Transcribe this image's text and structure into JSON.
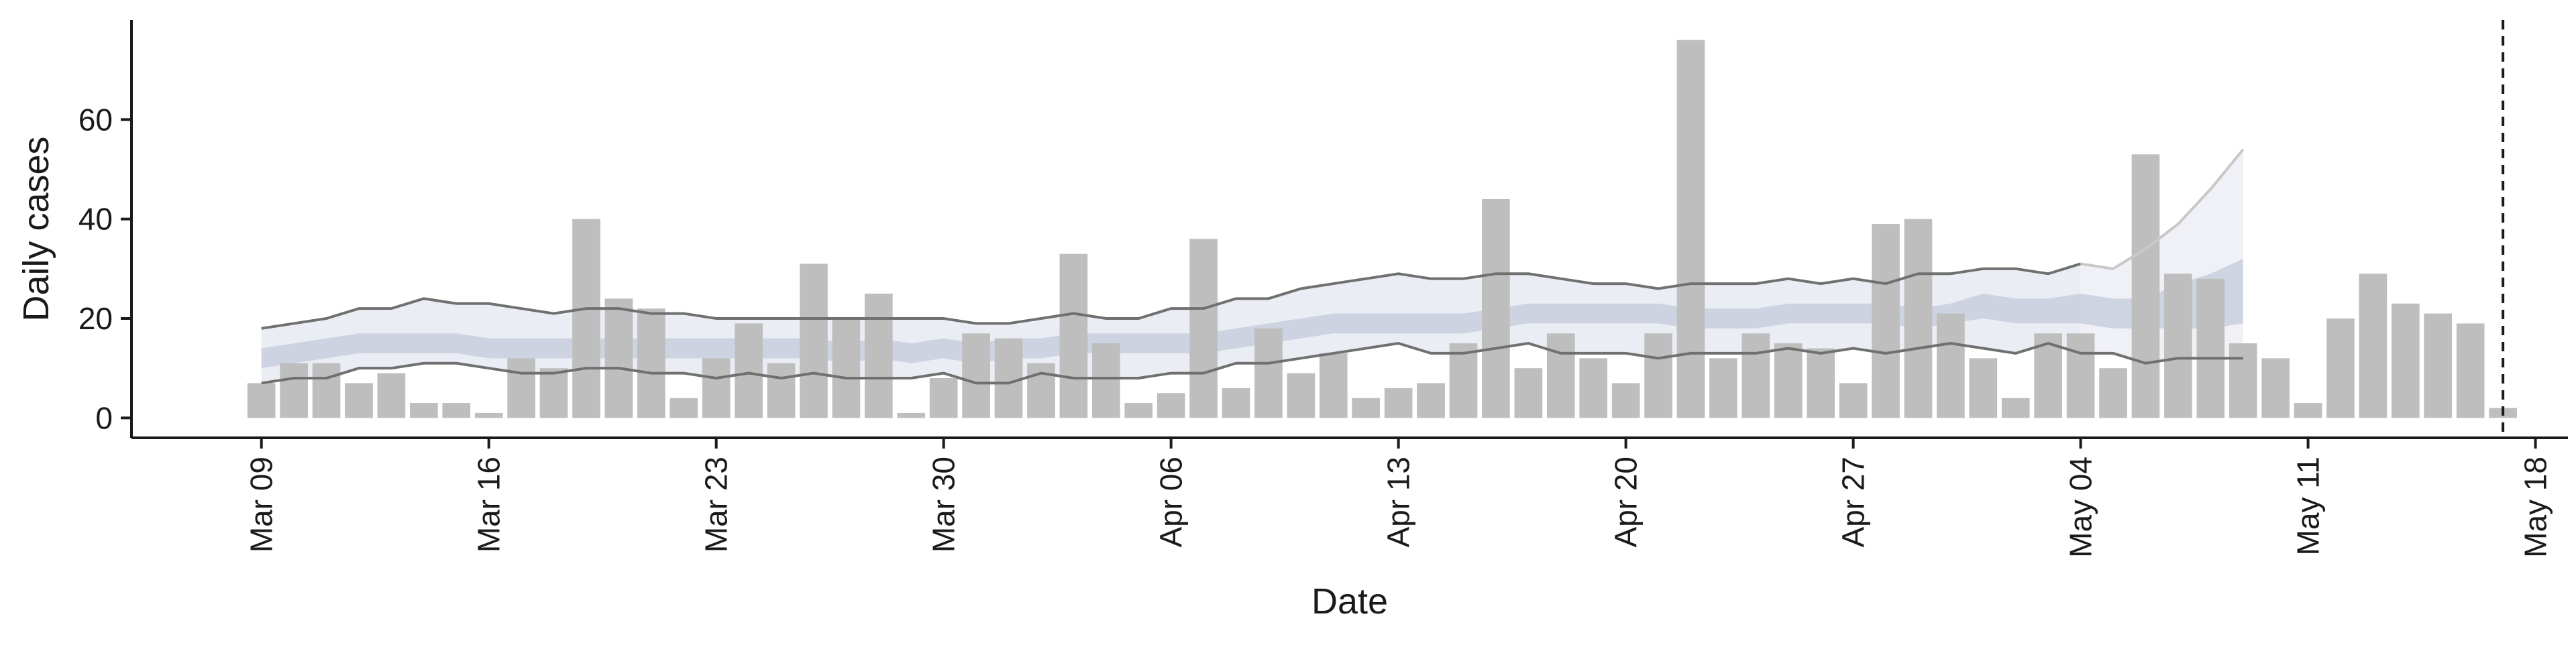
{
  "chart_data": {
    "type": "bar",
    "title": "",
    "xlabel": "Date",
    "ylabel": "Daily cases",
    "grid": false,
    "legend": "none",
    "x_start_date": "2020-03-09",
    "xlim": [
      "2020-03-05",
      "2020-05-19"
    ],
    "ylim": [
      -4,
      80
    ],
    "y_ticks": [
      0,
      20,
      40,
      60
    ],
    "y_tick_labels": [
      "0",
      "20",
      "40",
      "60"
    ],
    "x_ticks": [
      "2020-03-09",
      "2020-03-16",
      "2020-03-23",
      "2020-03-30",
      "2020-04-06",
      "2020-04-13",
      "2020-04-20",
      "2020-04-27",
      "2020-05-04",
      "2020-05-11",
      "2020-05-18"
    ],
    "x_tick_labels": [
      "Mar 09",
      "Mar 16",
      "Mar 23",
      "Mar 30",
      "Apr 06",
      "Apr 13",
      "Apr 20",
      "Apr 27",
      "May 04",
      "May 11",
      "May 18"
    ],
    "vline_date": "2020-05-17",
    "colors": {
      "bars": "#bebebe",
      "band_outer": "#e8eaf2",
      "band_inner": "#c3c9db",
      "lines": "#707070",
      "forecast_line": "#c8c8c8",
      "forecast_band": "#f0f1f6",
      "axis": "#1a1a1a"
    },
    "series": [
      {
        "type": "bar",
        "dates": [
          "2020-03-09",
          "2020-03-10",
          "2020-03-11",
          "2020-03-12",
          "2020-03-13",
          "2020-03-14",
          "2020-03-15",
          "2020-03-16",
          "2020-03-17",
          "2020-03-18",
          "2020-03-19",
          "2020-03-20",
          "2020-03-21",
          "2020-03-22",
          "2020-03-23",
          "2020-03-24",
          "2020-03-25",
          "2020-03-26",
          "2020-03-27",
          "2020-03-28",
          "2020-03-29",
          "2020-03-30",
          "2020-03-31",
          "2020-04-01",
          "2020-04-02",
          "2020-04-03",
          "2020-04-04",
          "2020-04-05",
          "2020-04-06",
          "2020-04-07",
          "2020-04-08",
          "2020-04-09",
          "2020-04-10",
          "2020-04-11",
          "2020-04-12",
          "2020-04-13",
          "2020-04-14",
          "2020-04-15",
          "2020-04-16",
          "2020-04-17",
          "2020-04-18",
          "2020-04-19",
          "2020-04-20",
          "2020-04-21",
          "2020-04-22",
          "2020-04-23",
          "2020-04-24",
          "2020-04-25",
          "2020-04-26",
          "2020-04-27",
          "2020-04-28",
          "2020-04-29",
          "2020-04-30",
          "2020-05-01",
          "2020-05-02",
          "2020-05-03",
          "2020-05-04",
          "2020-05-05",
          "2020-05-06",
          "2020-05-07",
          "2020-05-08",
          "2020-05-09",
          "2020-05-10",
          "2020-05-11",
          "2020-05-12",
          "2020-05-13",
          "2020-05-14",
          "2020-05-15",
          "2020-05-16",
          "2020-05-17"
        ],
        "values": [
          7,
          11,
          11,
          7,
          9,
          3,
          3,
          1,
          12,
          10,
          40,
          24,
          22,
          4,
          12,
          19,
          11,
          31,
          20,
          25,
          1,
          8,
          17,
          16,
          11,
          33,
          15,
          3,
          5,
          36,
          6,
          18,
          9,
          13,
          4,
          6,
          7,
          15,
          44,
          10,
          17,
          12,
          7,
          17,
          76,
          12,
          17,
          15,
          14,
          7,
          39,
          40,
          21,
          12,
          4,
          17,
          17,
          10,
          53,
          29,
          28,
          15,
          12,
          3,
          20,
          29,
          23,
          21,
          19,
          2
        ]
      },
      {
        "type": "area",
        "name": "",
        "dates_range": [
          "2020-03-09",
          "2020-05-10"
        ],
        "upper_outer": [
          18,
          19,
          20,
          22,
          22,
          24,
          23,
          23,
          22,
          21,
          22,
          22,
          21,
          21,
          20,
          20,
          20,
          20,
          20,
          20,
          20,
          20,
          19,
          19,
          20,
          21,
          20,
          20,
          22,
          22,
          24,
          24,
          26,
          27,
          28,
          29,
          28,
          28,
          29,
          29,
          28,
          27,
          27,
          26,
          27,
          27,
          27,
          28,
          27,
          28,
          27,
          29,
          29,
          30,
          30,
          29,
          31,
          30,
          34,
          39,
          46,
          54
        ],
        "lower_outer": [
          7,
          8,
          8,
          10,
          10,
          11,
          11,
          10,
          9,
          9,
          10,
          10,
          9,
          9,
          8,
          9,
          8,
          9,
          8,
          8,
          8,
          9,
          7,
          7,
          9,
          8,
          8,
          8,
          9,
          9,
          11,
          11,
          12,
          13,
          14,
          15,
          13,
          13,
          14,
          15,
          13,
          13,
          13,
          12,
          13,
          13,
          13,
          14,
          13,
          14,
          13,
          14,
          15,
          14,
          13,
          15,
          13,
          13,
          11,
          12,
          12,
          12
        ],
        "upper_inner": [
          14,
          15,
          16,
          17,
          17,
          17,
          17,
          16,
          16,
          16,
          16,
          16,
          16,
          16,
          16,
          16,
          16,
          16,
          15,
          16,
          15,
          16,
          15,
          16,
          16,
          17,
          17,
          17,
          17,
          17,
          18,
          19,
          20,
          21,
          21,
          21,
          21,
          21,
          22,
          23,
          23,
          23,
          23,
          23,
          22,
          22,
          22,
          23,
          23,
          23,
          23,
          22,
          23,
          25,
          24,
          24,
          25,
          24,
          24,
          27,
          29,
          32
        ],
        "lower_inner": [
          10,
          11,
          12,
          13,
          13,
          13,
          13,
          12,
          12,
          12,
          12,
          12,
          12,
          12,
          12,
          12,
          12,
          12,
          11,
          12,
          11,
          12,
          11,
          12,
          12,
          13,
          13,
          13,
          13,
          13,
          14,
          15,
          16,
          17,
          17,
          17,
          17,
          17,
          18,
          19,
          19,
          19,
          19,
          19,
          18,
          18,
          18,
          19,
          19,
          19,
          19,
          18,
          19,
          20,
          19,
          19,
          19,
          18,
          18,
          18,
          18,
          19
        ],
        "forecast_from": "2020-05-04"
      }
    ]
  }
}
